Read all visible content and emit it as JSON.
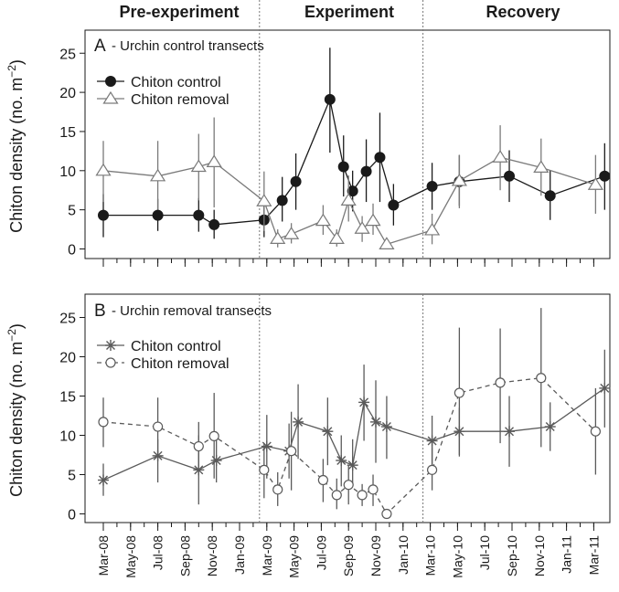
{
  "period_labels": [
    "Pre-experiment",
    "Experiment",
    "Recovery"
  ],
  "x_tick_labels": [
    "Mar-08",
    "May-08",
    "Jul-08",
    "Sep-08",
    "Nov-08",
    "Jan-09",
    "Mar-09",
    "May-09",
    "Jul-09",
    "Sep-09",
    "Nov-09",
    "Jan-10",
    "Mar-10",
    "May-10",
    "Jul-10",
    "Sep-10",
    "Nov-10",
    "Jan-11",
    "Mar-11"
  ],
  "y_tick_labels": [
    "0",
    "5",
    "10",
    "15",
    "20",
    "25"
  ],
  "colors": {
    "control_A": "#1a1a1a",
    "removal_A": "#7a7a7a",
    "series_B": "#5a5a5a",
    "axis": "#1a1a1a",
    "divider": "#777777"
  },
  "chart_data": [
    {
      "type": "line",
      "panel": "A",
      "panel_letter": "A",
      "title": "- Urchin control transects",
      "ylabel": "Chiton density (no. m",
      "ylabel_sup": "−2",
      "ylabel_end": ")",
      "ylim": [
        0,
        27
      ],
      "xlim_months": [
        "Feb-08",
        "Apr-11"
      ],
      "period_dividers": [
        "Mar-09",
        "Mar-10"
      ],
      "legend": "top-left",
      "series": [
        {
          "name": "Chiton control",
          "marker": "filled-circle",
          "line": "solid",
          "points": [
            {
              "x": "2008-03-01",
              "y": 4.3,
              "lo": 1.5,
              "hi": 7.0
            },
            {
              "x": "2008-07-01",
              "y": 4.3,
              "lo": 2.3,
              "hi": 6.4
            },
            {
              "x": "2008-10-01",
              "y": 4.3,
              "lo": 2.2,
              "hi": 6.5
            },
            {
              "x": "2008-11-05",
              "y": 3.1,
              "lo": 1.3,
              "hi": 5.0
            },
            {
              "x": "2009-02-25",
              "y": 3.7,
              "lo": 1.5,
              "hi": 6.0
            },
            {
              "x": "2009-04-05",
              "y": 6.2,
              "lo": 3.5,
              "hi": 9.2
            },
            {
              "x": "2009-05-05",
              "y": 8.6,
              "lo": 5.0,
              "hi": 12.2
            },
            {
              "x": "2009-07-20",
              "y": 19.1,
              "lo": 12.3,
              "hi": 25.7
            },
            {
              "x": "2009-08-20",
              "y": 10.5,
              "lo": 6.7,
              "hi": 14.5
            },
            {
              "x": "2009-09-10",
              "y": 7.4,
              "lo": 4.8,
              "hi": 10.0
            },
            {
              "x": "2009-10-10",
              "y": 9.9,
              "lo": 6.0,
              "hi": 14.0
            },
            {
              "x": "2009-11-10",
              "y": 11.7,
              "lo": 6.0,
              "hi": 17.4
            },
            {
              "x": "2009-12-10",
              "y": 5.6,
              "lo": 3.0,
              "hi": 8.3
            },
            {
              "x": "2010-03-05",
              "y": 8.0,
              "lo": 5.0,
              "hi": 11.0
            },
            {
              "x": "2010-05-05",
              "y": 8.6,
              "lo": 5.5,
              "hi": 12.0
            },
            {
              "x": "2010-08-25",
              "y": 9.3,
              "lo": 6.0,
              "hi": 12.6
            },
            {
              "x": "2010-11-25",
              "y": 6.8,
              "lo": 3.7,
              "hi": 10.0
            },
            {
              "x": "2011-03-25",
              "y": 9.3,
              "lo": 5.0,
              "hi": 13.5
            }
          ]
        },
        {
          "name": "Chiton removal",
          "marker": "open-triangle",
          "line": "solid",
          "points": [
            {
              "x": "2008-03-01",
              "y": 10.0,
              "lo": 6.0,
              "hi": 13.8
            },
            {
              "x": "2008-07-01",
              "y": 9.3,
              "lo": 5.0,
              "hi": 13.8
            },
            {
              "x": "2008-10-01",
              "y": 10.5,
              "lo": 6.2,
              "hi": 14.7
            },
            {
              "x": "2008-11-05",
              "y": 11.1,
              "lo": 5.3,
              "hi": 16.8
            },
            {
              "x": "2009-02-25",
              "y": 6.1,
              "lo": 2.3,
              "hi": 9.9
            },
            {
              "x": "2009-03-25",
              "y": 1.3,
              "lo": 0.2,
              "hi": 2.5
            },
            {
              "x": "2009-04-25",
              "y": 1.9,
              "lo": 0.7,
              "hi": 3.3
            },
            {
              "x": "2009-07-05",
              "y": 3.6,
              "lo": 1.8,
              "hi": 5.6
            },
            {
              "x": "2009-08-05",
              "y": 1.3,
              "lo": 0.3,
              "hi": 2.5
            },
            {
              "x": "2009-09-01",
              "y": 6.2,
              "lo": 3.5,
              "hi": 9.4
            },
            {
              "x": "2009-10-01",
              "y": 2.6,
              "lo": 0.9,
              "hi": 4.2
            },
            {
              "x": "2009-10-25",
              "y": 3.6,
              "lo": 1.8,
              "hi": 5.8
            },
            {
              "x": "2009-11-25",
              "y": 0.6,
              "lo": 0.0,
              "hi": 1.4
            },
            {
              "x": "2010-03-05",
              "y": 2.4,
              "lo": 0.6,
              "hi": 4.5
            },
            {
              "x": "2010-05-05",
              "y": 8.7,
              "lo": 5.2,
              "hi": 12.0
            },
            {
              "x": "2010-08-05",
              "y": 11.7,
              "lo": 7.5,
              "hi": 15.8
            },
            {
              "x": "2010-11-05",
              "y": 10.4,
              "lo": 6.8,
              "hi": 14.1
            },
            {
              "x": "2011-03-05",
              "y": 8.2,
              "lo": 4.5,
              "hi": 12.0
            }
          ]
        }
      ]
    },
    {
      "type": "line",
      "panel": "B",
      "panel_letter": "B",
      "title": "- Urchin removal transects",
      "ylabel": "Chiton density (no. m",
      "ylabel_sup": "−2",
      "ylabel_end": ")",
      "ylim": [
        0,
        27
      ],
      "xlim_months": [
        "Feb-08",
        "Apr-11"
      ],
      "period_dividers": [
        "Mar-09",
        "Mar-10"
      ],
      "legend": "top-left",
      "series": [
        {
          "name": "Chiton control",
          "marker": "asterisk",
          "line": "solid",
          "points": [
            {
              "x": "2008-03-01",
              "y": 4.3,
              "lo": 2.3,
              "hi": 6.4
            },
            {
              "x": "2008-07-01",
              "y": 7.4,
              "lo": 4.0,
              "hi": 9.5
            },
            {
              "x": "2008-10-01",
              "y": 5.6,
              "lo": 1.2,
              "hi": 10.0
            },
            {
              "x": "2008-11-10",
              "y": 6.8,
              "lo": 4.0,
              "hi": 9.5
            },
            {
              "x": "2009-03-01",
              "y": 8.6,
              "lo": 4.5,
              "hi": 12.6
            },
            {
              "x": "2009-04-20",
              "y": 8.0,
              "lo": 4.5,
              "hi": 11.5
            },
            {
              "x": "2009-05-10",
              "y": 11.7,
              "lo": 7.0,
              "hi": 16.5
            },
            {
              "x": "2009-07-15",
              "y": 10.5,
              "lo": 6.2,
              "hi": 14.8
            },
            {
              "x": "2009-08-15",
              "y": 6.8,
              "lo": 3.5,
              "hi": 10.0
            },
            {
              "x": "2009-09-10",
              "y": 6.2,
              "lo": 3.5,
              "hi": 9.5
            },
            {
              "x": "2009-10-05",
              "y": 14.2,
              "lo": 9.3,
              "hi": 19.0
            },
            {
              "x": "2009-11-01",
              "y": 11.7,
              "lo": 6.5,
              "hi": 17.0
            },
            {
              "x": "2009-11-25",
              "y": 11.1,
              "lo": 7.0,
              "hi": 15.0
            },
            {
              "x": "2010-03-05",
              "y": 9.3,
              "lo": 6.0,
              "hi": 12.5
            },
            {
              "x": "2010-05-05",
              "y": 10.5,
              "lo": 7.3,
              "hi": 13.5
            },
            {
              "x": "2010-08-25",
              "y": 10.5,
              "lo": 6.0,
              "hi": 15.0
            },
            {
              "x": "2010-11-25",
              "y": 11.1,
              "lo": 8.0,
              "hi": 14.2
            },
            {
              "x": "2011-03-25",
              "y": 16.0,
              "lo": 11.0,
              "hi": 20.9
            }
          ]
        },
        {
          "name": "Chiton removal",
          "marker": "open-circle",
          "line": "dashed",
          "points": [
            {
              "x": "2008-03-01",
              "y": 11.7,
              "lo": 8.5,
              "hi": 14.8
            },
            {
              "x": "2008-07-01",
              "y": 11.1,
              "lo": 7.0,
              "hi": 14.8
            },
            {
              "x": "2008-10-01",
              "y": 8.6,
              "lo": 5.5,
              "hi": 11.7
            },
            {
              "x": "2008-11-05",
              "y": 9.9,
              "lo": 4.5,
              "hi": 15.4
            },
            {
              "x": "2009-02-25",
              "y": 5.6,
              "lo": 2.0,
              "hi": 9.0
            },
            {
              "x": "2009-03-25",
              "y": 3.1,
              "lo": 1.0,
              "hi": 5.3
            },
            {
              "x": "2009-04-25",
              "y": 8.0,
              "lo": 3.0,
              "hi": 13.0
            },
            {
              "x": "2009-07-05",
              "y": 4.3,
              "lo": 1.5,
              "hi": 7.0
            },
            {
              "x": "2009-08-05",
              "y": 2.4,
              "lo": 0.6,
              "hi": 4.5
            },
            {
              "x": "2009-09-01",
              "y": 3.7,
              "lo": 1.2,
              "hi": 6.2
            },
            {
              "x": "2009-10-01",
              "y": 2.4,
              "lo": 1.0,
              "hi": 3.8
            },
            {
              "x": "2009-10-25",
              "y": 3.1,
              "lo": 1.0,
              "hi": 5.0
            },
            {
              "x": "2009-11-25",
              "y": 0.0,
              "lo": 0.0,
              "hi": 0.0
            },
            {
              "x": "2010-03-05",
              "y": 5.6,
              "lo": 3.0,
              "hi": 8.5
            },
            {
              "x": "2010-05-05",
              "y": 15.4,
              "lo": 7.5,
              "hi": 23.7
            },
            {
              "x": "2010-08-05",
              "y": 16.7,
              "lo": 9.0,
              "hi": 23.6
            },
            {
              "x": "2010-11-05",
              "y": 17.3,
              "lo": 8.5,
              "hi": 26.2
            },
            {
              "x": "2011-03-05",
              "y": 10.5,
              "lo": 5.0,
              "hi": 16.0
            }
          ]
        }
      ]
    }
  ]
}
